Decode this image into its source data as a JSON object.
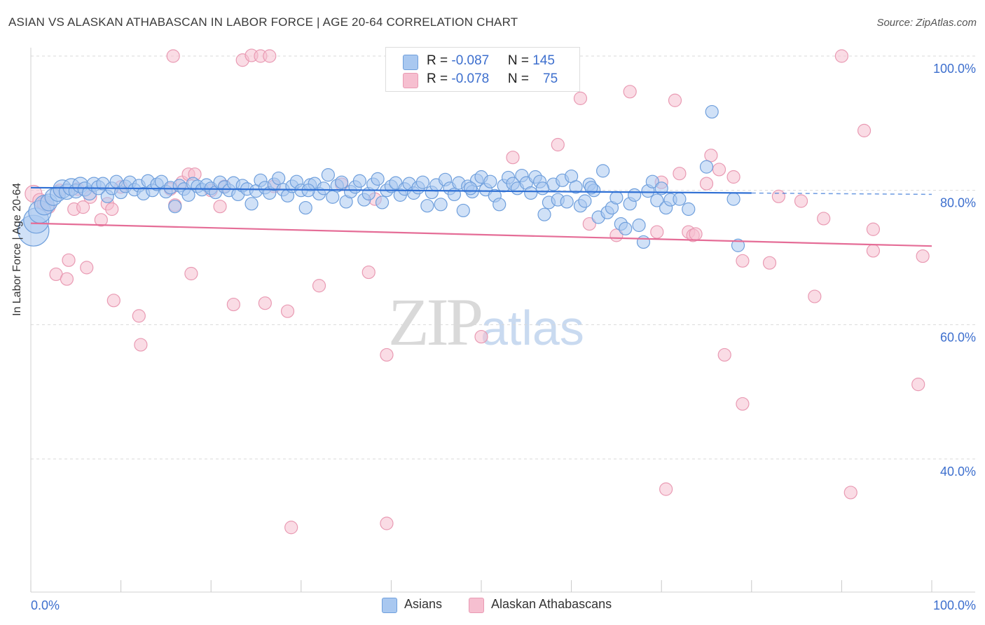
{
  "title": "ASIAN VS ALASKAN ATHABASCAN IN LABOR FORCE | AGE 20-64 CORRELATION CHART",
  "source": "Source: ZipAtlas.com",
  "watermark": {
    "zip": "ZIP",
    "atlas": "atlas"
  },
  "legend": {
    "asians": {
      "r_label": "R = ",
      "r_value": "-0.087",
      "n_label": "N = ",
      "n_value": "145"
    },
    "athabascans": {
      "r_label": "R = ",
      "r_value": "-0.078",
      "n_label": "N = ",
      "n_value": "75"
    }
  },
  "colors": {
    "asians_fill": "#a9c8f0",
    "asians_stroke": "#6f9fdc",
    "asians_line": "#2e6fd4",
    "athabascans_fill": "#f6bfd0",
    "athabascans_stroke": "#e99ab3",
    "athabascans_line": "#e56d97",
    "axis_text": "#3d6fce",
    "grid": "#d9d9d9"
  },
  "chart_data": {
    "type": "scatter",
    "title": "ASIAN VS ALASKAN ATHABASCAN IN LABOR FORCE | AGE 20-64 CORRELATION CHART",
    "xlabel": "",
    "ylabel": "In Labor Force | Age 20-64",
    "xlim": [
      0,
      100
    ],
    "ylim": [
      20,
      102
    ],
    "x_tick_labels": [
      "0.0%",
      "100.0%"
    ],
    "y_ticks": [
      40,
      60,
      80,
      100
    ],
    "y_tick_labels": [
      "40.0%",
      "60.0%",
      "80.0%",
      "100.0%"
    ],
    "legend_position": "bottom-center",
    "series": [
      {
        "name": "Asians",
        "trend": {
          "x": [
            0,
            80
          ],
          "y": [
            80.4,
            79.6
          ],
          "dashed_extension_to": 100
        },
        "points": [
          [
            0.3,
            74.0,
            22
          ],
          [
            0.6,
            75.5,
            18
          ],
          [
            1.0,
            76.8,
            16
          ],
          [
            1.5,
            77.8,
            14
          ],
          [
            2.0,
            78.2,
            12
          ],
          [
            2.5,
            79.0,
            12
          ],
          [
            3.0,
            79.5,
            11
          ],
          [
            3.5,
            80.2,
            13
          ],
          [
            4.0,
            79.8,
            11
          ],
          [
            4.5,
            80.5,
            12
          ],
          [
            5.0,
            79.9,
            10
          ],
          [
            5.5,
            80.8,
            11
          ],
          [
            6.0,
            80.2,
            10
          ],
          [
            6.5,
            79.6,
            10
          ],
          [
            7.0,
            80.9,
            10
          ],
          [
            7.5,
            80.4,
            10
          ],
          [
            8.0,
            81.0,
            9
          ],
          [
            8.5,
            79.1,
            9
          ],
          [
            9.0,
            80.3,
            9
          ],
          [
            9.5,
            81.3,
            9
          ],
          [
            10.0,
            79.7,
            9
          ],
          [
            10.5,
            80.6,
            9
          ],
          [
            11.0,
            81.2,
            9
          ],
          [
            11.5,
            80.1,
            9
          ],
          [
            12.0,
            80.7,
            9
          ],
          [
            12.5,
            79.5,
            9
          ],
          [
            13.0,
            81.4,
            9
          ],
          [
            13.5,
            80.0,
            9
          ],
          [
            14.0,
            80.9,
            9
          ],
          [
            14.5,
            81.3,
            9
          ],
          [
            15.0,
            79.8,
            9
          ],
          [
            15.5,
            80.4,
            9
          ],
          [
            16.0,
            77.6,
            9
          ],
          [
            16.5,
            80.7,
            9
          ],
          [
            17.0,
            80.2,
            9
          ],
          [
            17.5,
            79.3,
            9
          ],
          [
            18.0,
            81.0,
            9
          ],
          [
            18.5,
            80.6,
            9
          ],
          [
            19.0,
            80.1,
            9
          ],
          [
            19.5,
            80.8,
            9
          ],
          [
            20.0,
            80.3,
            9
          ],
          [
            20.5,
            79.7,
            9
          ],
          [
            21.0,
            81.2,
            9
          ],
          [
            21.5,
            80.5,
            9
          ],
          [
            22.0,
            80.0,
            9
          ],
          [
            22.5,
            81.1,
            9
          ],
          [
            23.0,
            79.4,
            9
          ],
          [
            23.5,
            80.7,
            9
          ],
          [
            24.0,
            80.2,
            9
          ],
          [
            24.5,
            78.0,
            9
          ],
          [
            25.0,
            79.9,
            9
          ],
          [
            25.5,
            81.5,
            9
          ],
          [
            26.0,
            80.4,
            9
          ],
          [
            26.5,
            79.6,
            9
          ],
          [
            27.0,
            80.9,
            9
          ],
          [
            27.5,
            81.8,
            9
          ],
          [
            28.0,
            80.1,
            9
          ],
          [
            28.5,
            79.2,
            9
          ],
          [
            29.0,
            80.6,
            9
          ],
          [
            29.5,
            81.3,
            9
          ],
          [
            30.0,
            80.0,
            9
          ],
          [
            30.5,
            77.4,
            9
          ],
          [
            31.0,
            80.8,
            9
          ],
          [
            31.5,
            81.0,
            9
          ],
          [
            32.0,
            79.5,
            9
          ],
          [
            32.5,
            80.3,
            9
          ],
          [
            33.0,
            82.3,
            9
          ],
          [
            33.5,
            79.0,
            9
          ],
          [
            34.0,
            80.7,
            9
          ],
          [
            34.5,
            81.2,
            9
          ],
          [
            35.0,
            78.3,
            9
          ],
          [
            35.5,
            79.8,
            9
          ],
          [
            36.0,
            80.5,
            9
          ],
          [
            36.5,
            81.4,
            9
          ],
          [
            37.0,
            78.6,
            9
          ],
          [
            37.5,
            79.5,
            9
          ],
          [
            38.0,
            80.9,
            9
          ],
          [
            38.5,
            81.7,
            9
          ],
          [
            39.0,
            78.2,
            9
          ],
          [
            39.5,
            80.0,
            9
          ],
          [
            40.0,
            80.6,
            9
          ],
          [
            40.5,
            81.1,
            9
          ],
          [
            41.0,
            79.3,
            9
          ],
          [
            41.5,
            80.2,
            9
          ],
          [
            42.0,
            81.0,
            9
          ],
          [
            42.5,
            79.6,
            9
          ],
          [
            43.0,
            80.4,
            9
          ],
          [
            43.5,
            81.2,
            9
          ],
          [
            44.0,
            77.7,
            9
          ],
          [
            44.5,
            79.7,
            9
          ],
          [
            45.0,
            80.8,
            9
          ],
          [
            45.5,
            77.9,
            9
          ],
          [
            46.0,
            81.6,
            9
          ],
          [
            46.5,
            80.3,
            9
          ],
          [
            47.0,
            79.4,
            9
          ],
          [
            47.5,
            81.1,
            9
          ],
          [
            48.0,
            77.0,
            9
          ],
          [
            48.5,
            80.6,
            9
          ],
          [
            49.0,
            79.8,
            9
          ],
          [
            49.5,
            81.5,
            9
          ],
          [
            50.0,
            82.0,
            9
          ],
          [
            50.5,
            80.1,
            9
          ],
          [
            51.0,
            81.3,
            9
          ],
          [
            51.5,
            79.2,
            9
          ],
          [
            52.0,
            77.9,
            9
          ],
          [
            52.5,
            80.7,
            9
          ],
          [
            53.0,
            81.9,
            9
          ],
          [
            53.5,
            81.0,
            9
          ],
          [
            54.0,
            80.3,
            9
          ],
          [
            54.5,
            82.2,
            9
          ],
          [
            55.0,
            81.1,
            9
          ],
          [
            55.5,
            79.6,
            9
          ],
          [
            56.0,
            82.0,
            9
          ],
          [
            56.5,
            81.3,
            9
          ],
          [
            57.0,
            76.4,
            9
          ],
          [
            57.5,
            78.2,
            9
          ],
          [
            58.0,
            80.9,
            9
          ],
          [
            58.5,
            78.6,
            9
          ],
          [
            59.0,
            81.5,
            9
          ],
          [
            59.5,
            78.3,
            9
          ],
          [
            60.0,
            82.1,
            9
          ],
          [
            60.5,
            80.5,
            9
          ],
          [
            61.0,
            77.7,
            9
          ],
          [
            61.5,
            78.4,
            9
          ],
          [
            62.0,
            80.9,
            9
          ],
          [
            62.5,
            80.0,
            9
          ],
          [
            63.0,
            76.0,
            9
          ],
          [
            63.5,
            82.9,
            9
          ],
          [
            64.0,
            76.7,
            9
          ],
          [
            64.5,
            77.4,
            9
          ],
          [
            65.0,
            78.9,
            9
          ],
          [
            65.5,
            75.0,
            9
          ],
          [
            66.0,
            74.3,
            9
          ],
          [
            66.5,
            78.0,
            9
          ],
          [
            67.0,
            79.3,
            9
          ],
          [
            67.5,
            74.8,
            9
          ],
          [
            68.0,
            72.3,
            9
          ],
          [
            68.5,
            79.9,
            9
          ],
          [
            69.0,
            81.3,
            9
          ],
          [
            69.5,
            78.5,
            9
          ],
          [
            70.0,
            80.3,
            9
          ],
          [
            70.5,
            77.4,
            9
          ],
          [
            71.0,
            78.6,
            9
          ],
          [
            72.0,
            78.7,
            9
          ],
          [
            75.0,
            83.5,
            9
          ],
          [
            75.6,
            91.7,
            9
          ],
          [
            78.0,
            78.7,
            9
          ],
          [
            78.5,
            71.8,
            9
          ],
          [
            73.0,
            77.2,
            9
          ],
          [
            56.8,
            80.3,
            9
          ],
          [
            30.8,
            80.0,
            9
          ],
          [
            48.8,
            80.3,
            9
          ],
          [
            62.2,
            80.4,
            9
          ]
        ]
      },
      {
        "name": "Alaskan Athabascans",
        "trend": {
          "x": [
            0,
            100
          ],
          "y": [
            75.1,
            71.7
          ]
        },
        "points": [
          [
            0.3,
            79.5,
            12
          ],
          [
            1.0,
            78.5,
            10
          ],
          [
            1.5,
            78.0,
            10
          ],
          [
            2.0,
            77.5,
            9
          ],
          [
            2.8,
            67.5,
            9
          ],
          [
            3.2,
            80.0,
            9
          ],
          [
            4.0,
            66.8,
            9
          ],
          [
            4.2,
            69.6,
            9
          ],
          [
            4.8,
            77.2,
            9
          ],
          [
            5.2,
            80.2,
            9
          ],
          [
            5.8,
            77.5,
            9
          ],
          [
            6.2,
            68.5,
            9
          ],
          [
            6.6,
            79.0,
            9
          ],
          [
            7.8,
            75.6,
            9
          ],
          [
            8.5,
            78.0,
            9
          ],
          [
            9.0,
            77.2,
            9
          ],
          [
            9.2,
            63.6,
            9
          ],
          [
            10.0,
            80.5,
            9
          ],
          [
            12.0,
            61.3,
            9
          ],
          [
            12.2,
            57.0,
            9
          ],
          [
            16.0,
            77.8,
            9
          ],
          [
            15.5,
            80.2,
            9
          ],
          [
            15.8,
            100.0,
            9
          ],
          [
            16.8,
            81.2,
            9
          ],
          [
            17.5,
            82.4,
            9
          ],
          [
            18.2,
            82.4,
            9
          ],
          [
            17.8,
            67.6,
            9
          ],
          [
            20.0,
            80.0,
            9
          ],
          [
            21.5,
            80.6,
            9
          ],
          [
            21.0,
            77.6,
            9
          ],
          [
            22.5,
            63.0,
            9
          ],
          [
            23.5,
            99.4,
            9
          ],
          [
            24.5,
            100.1,
            9
          ],
          [
            25.5,
            100.0,
            9
          ],
          [
            26.5,
            100.0,
            9
          ],
          [
            26.0,
            63.2,
            9
          ],
          [
            27.0,
            80.6,
            9
          ],
          [
            28.5,
            62.0,
            9
          ],
          [
            28.9,
            29.8,
            9
          ],
          [
            32.0,
            65.8,
            9
          ],
          [
            34.5,
            80.9,
            9
          ],
          [
            37.5,
            67.8,
            9
          ],
          [
            38.2,
            78.7,
            9
          ],
          [
            39.5,
            55.5,
            9
          ],
          [
            39.5,
            30.4,
            9
          ],
          [
            50.0,
            58.2,
            9
          ],
          [
            53.5,
            84.9,
            9
          ],
          [
            58.5,
            86.8,
            9
          ],
          [
            61.0,
            93.7,
            9
          ],
          [
            62.0,
            75.0,
            9
          ],
          [
            65.0,
            73.3,
            9
          ],
          [
            66.5,
            94.7,
            9
          ],
          [
            69.5,
            73.8,
            9
          ],
          [
            70.0,
            81.2,
            9
          ],
          [
            70.5,
            35.5,
            9
          ],
          [
            71.5,
            93.4,
            9
          ],
          [
            72.0,
            82.5,
            9
          ],
          [
            73.0,
            73.8,
            9
          ],
          [
            73.5,
            73.3,
            9
          ],
          [
            73.8,
            73.5,
            9
          ],
          [
            75.0,
            81.0,
            9
          ],
          [
            75.5,
            85.2,
            9
          ],
          [
            76.4,
            83.1,
            9
          ],
          [
            77.0,
            55.5,
            9
          ],
          [
            78.0,
            82.0,
            9
          ],
          [
            79.0,
            69.5,
            9
          ],
          [
            79.0,
            48.2,
            9
          ],
          [
            82.0,
            69.2,
            9
          ],
          [
            83.0,
            79.1,
            9
          ],
          [
            85.5,
            78.4,
            9
          ],
          [
            87.0,
            64.2,
            9
          ],
          [
            88.0,
            75.8,
            9
          ],
          [
            90.0,
            100.0,
            9
          ],
          [
            91.0,
            35.0,
            9
          ],
          [
            92.5,
            88.9,
            9
          ],
          [
            93.5,
            74.2,
            9
          ],
          [
            93.5,
            71.0,
            9
          ],
          [
            98.5,
            51.1,
            9
          ],
          [
            99.0,
            70.2,
            9
          ]
        ]
      }
    ]
  }
}
